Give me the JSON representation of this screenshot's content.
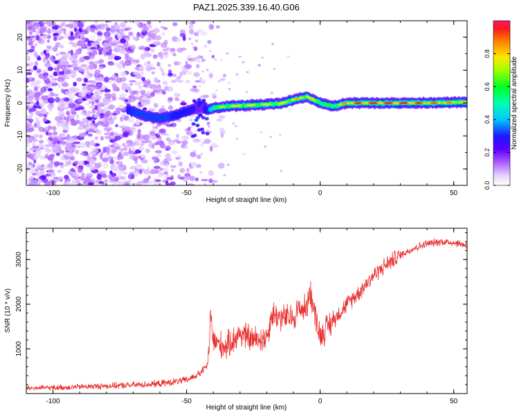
{
  "chart_data": [
    {
      "type": "heatmap",
      "title": "PAZ1.2025.339.16.40.G06",
      "xlabel": "Height of straight line (km)",
      "ylabel": "Frequency (Hz)",
      "xlim": [
        -110,
        55
      ],
      "ylim": [
        -25,
        25
      ],
      "xticks": [
        -100,
        -50,
        0,
        50
      ],
      "yticks": [
        -20,
        -10,
        0,
        10,
        20
      ],
      "colorbar": {
        "label": "Normalized spectral amplitude",
        "range": [
          0,
          1
        ],
        "ticks": [
          0.0,
          0.2,
          0.4,
          0.6,
          0.8
        ]
      },
      "ridge": {
        "description": "frequency of main spectral ridge (Hz) vs height (km)",
        "x": [
          -72,
          -65,
          -60,
          -55,
          -50,
          -45,
          -42,
          -40,
          -35,
          -30,
          -25,
          -20,
          -15,
          -10,
          -5,
          0,
          5,
          10,
          20,
          30,
          40,
          55
        ],
        "y": [
          -2,
          -4,
          -4.5,
          -4,
          -2.5,
          -1.5,
          -2,
          -1.5,
          -1,
          -0.8,
          -0.6,
          -0.4,
          -0.2,
          1,
          2,
          0,
          -1,
          0,
          0,
          0,
          0,
          0.3
        ],
        "amplitude": [
          0.3,
          0.35,
          0.35,
          0.3,
          0.3,
          0.25,
          0.3,
          0.55,
          0.7,
          0.75,
          0.7,
          0.7,
          0.7,
          0.75,
          0.8,
          0.6,
          0.55,
          0.85,
          0.9,
          0.9,
          0.85,
          0.75
        ]
      }
    },
    {
      "type": "line",
      "title": "",
      "xlabel": "Height of straight line (km)",
      "ylabel": "SNR (10 * v/v)",
      "xlim": [
        -110,
        55
      ],
      "ylim": [
        0,
        3700
      ],
      "xticks": [
        -100,
        -50,
        0,
        50
      ],
      "yticks": [
        1000,
        2000,
        3000
      ],
      "color": "#e8302e",
      "series": [
        {
          "name": "SNR",
          "x": [
            -110,
            -100,
            -90,
            -80,
            -70,
            -60,
            -55,
            -50,
            -45,
            -42,
            -41,
            -40,
            -38,
            -35,
            -30,
            -25,
            -20,
            -18,
            -15,
            -10,
            -8,
            -5,
            -4,
            -2,
            0,
            5,
            10,
            15,
            20,
            25,
            30,
            35,
            40,
            45,
            50,
            55
          ],
          "y": [
            120,
            130,
            150,
            170,
            190,
            220,
            260,
            300,
            450,
            650,
            1700,
            1200,
            1100,
            1050,
            1350,
            1200,
            1250,
            1800,
            1700,
            1700,
            1900,
            1900,
            2350,
            1800,
            1300,
            1650,
            2000,
            2300,
            2650,
            2900,
            3100,
            3250,
            3350,
            3400,
            3380,
            3320
          ]
        }
      ]
    }
  ]
}
